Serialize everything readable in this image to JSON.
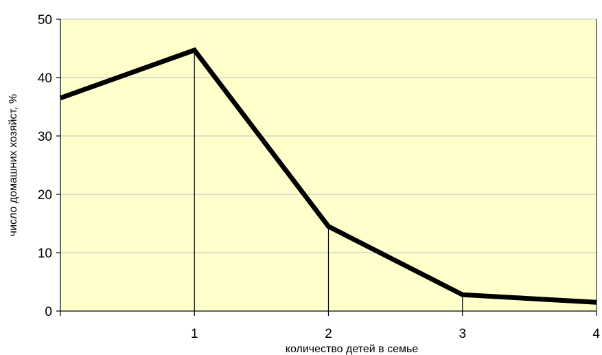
{
  "chart_data": {
    "type": "line",
    "xlabel": "количество детей в семье",
    "ylabel": "число домашних хозяйст, %",
    "x": [
      0,
      1,
      2,
      3,
      4
    ],
    "x_tick_labels": [
      "1",
      "2",
      "3",
      "4"
    ],
    "x_tick_values": [
      1,
      2,
      3,
      4
    ],
    "y_tick_labels": [
      "0",
      "10",
      "20",
      "30",
      "40",
      "50"
    ],
    "y_tick_values": [
      0,
      10,
      20,
      30,
      40,
      50
    ],
    "xlim": [
      0,
      4
    ],
    "ylim": [
      0,
      50
    ],
    "series": [
      {
        "values": [
          36.5,
          44.7,
          14.5,
          2.8,
          1.5
        ]
      }
    ],
    "drop_lines_at_x": [
      1,
      2,
      3
    ],
    "grid": "horizontal",
    "colors": {
      "plot_background": "#FFFFCC",
      "line": "#000000",
      "gridline": "#C0C0C0"
    }
  }
}
